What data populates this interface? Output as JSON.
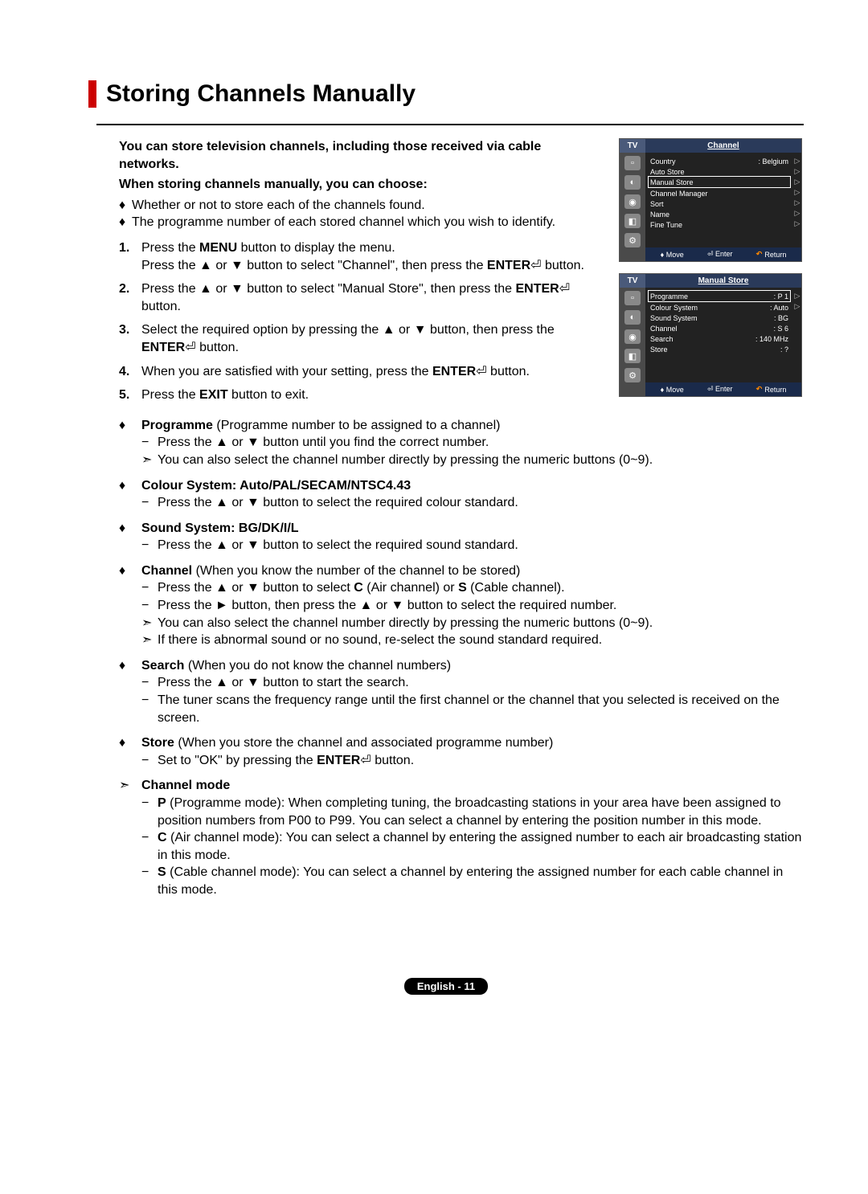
{
  "title": "Storing Channels Manually",
  "intro1": "You can store television channels, including those received via cable networks.",
  "intro2": "When storing channels manually, you can choose:",
  "introBullets": [
    "Whether or not to store each of the channels found.",
    "The programme number of each stored channel which you wish to identify."
  ],
  "steps": [
    {
      "num": "1.",
      "html": "Press the <b>MENU</b> button to display the menu.<br>Press the ▲ or ▼ button to select \"Channel\", then press the <b>ENTER</b>⏎ button."
    },
    {
      "num": "2.",
      "html": "Press the ▲ or ▼ button to select \"Manual Store\", then press the <b>ENTER</b>⏎ button."
    },
    {
      "num": "3.",
      "html": "Select the required option by pressing the ▲ or ▼ button, then press the <b>ENTER</b>⏎ button."
    },
    {
      "num": "4.",
      "html": "When you are satisfied with your setting, press the <b>ENTER</b>⏎ button."
    },
    {
      "num": "5.",
      "html": "Press the <b>EXIT</b> button to exit."
    }
  ],
  "options": [
    {
      "mark": "♦",
      "head": "<b>Programme</b> (Programme number to be assigned to a channel)",
      "lines": [
        {
          "m": "−",
          "t": "Press the ▲ or ▼ button until you find the correct number."
        },
        {
          "m": "➣",
          "t": "You can also select the channel number directly by pressing the numeric buttons (0~9)."
        }
      ]
    },
    {
      "mark": "♦",
      "head": "<b>Colour System: Auto/PAL/SECAM/NTSC4.43</b>",
      "lines": [
        {
          "m": "−",
          "t": "Press the ▲ or ▼ button to select the required colour standard."
        }
      ]
    },
    {
      "mark": "♦",
      "head": "<b>Sound System: BG/DK/I/L</b>",
      "lines": [
        {
          "m": "−",
          "t": "Press the ▲ or ▼ button to select the required sound standard."
        }
      ]
    },
    {
      "mark": "♦",
      "head": "<b>Channel</b> (When you know the number of the channel to be stored)",
      "lines": [
        {
          "m": "−",
          "t": "Press the ▲ or ▼ button to select <b>C</b> (Air channel) or <b>S</b> (Cable channel)."
        },
        {
          "m": "−",
          "t": "Press the ► button, then press the ▲ or ▼ button to select the required number."
        },
        {
          "m": "➣",
          "t": "You can also select the channel number directly by pressing the numeric buttons (0~9)."
        },
        {
          "m": "➣",
          "t": "If there is abnormal sound or no sound, re-select the sound standard required."
        }
      ]
    },
    {
      "mark": "♦",
      "head": "<b>Search</b> (When you do not know the channel numbers)",
      "lines": [
        {
          "m": "−",
          "t": "Press the ▲ or ▼ button to start the search."
        },
        {
          "m": "−",
          "t": "The tuner scans the frequency range until the first channel or the channel that you selected is received on the screen."
        }
      ]
    },
    {
      "mark": "♦",
      "head": "<b>Store</b> (When you store the channel and associated programme number)",
      "lines": [
        {
          "m": "−",
          "t": "Set to \"OK\" by pressing the <b>ENTER</b>⏎ button."
        }
      ]
    },
    {
      "mark": "➣",
      "head": "<b>Channel mode</b>",
      "lines": [
        {
          "m": "−",
          "t": "<b>P</b> (Programme mode): When completing tuning, the broadcasting stations in your area have been assigned to position numbers from P00 to P99. You can select a channel by entering the position number in this mode."
        },
        {
          "m": "−",
          "t": "<b>C</b> (Air channel mode): You can select a channel by entering the assigned number to each air broadcasting station in this mode."
        },
        {
          "m": "−",
          "t": "<b>S</b> (Cable channel mode): You can select a channel by entering the assigned number for each cable channel in this mode."
        }
      ]
    }
  ],
  "osd1": {
    "tv": "TV",
    "title": "Channel",
    "rows": [
      {
        "l": "Country",
        "v": ": Belgium",
        "a": "▷"
      },
      {
        "l": "Auto Store",
        "v": "",
        "a": "▷"
      },
      {
        "l": "Manual Store",
        "v": "",
        "a": "▷",
        "sel": true
      },
      {
        "l": "Channel Manager",
        "v": "",
        "a": "▷"
      },
      {
        "l": "Sort",
        "v": "",
        "a": "▷"
      },
      {
        "l": "Name",
        "v": "",
        "a": "▷"
      },
      {
        "l": "Fine Tune",
        "v": "",
        "a": "▷"
      }
    ],
    "foot": {
      "move": "Move",
      "enter": "Enter",
      "return": "Return"
    }
  },
  "osd2": {
    "tv": "TV",
    "title": "Manual Store",
    "rows": [
      {
        "l": "Programme",
        "v": ": P 1",
        "a": "▷",
        "sel": true
      },
      {
        "l": "Colour System",
        "v": ": Auto",
        "a": "▷"
      },
      {
        "l": "Sound System",
        "v": ": BG",
        "a": ""
      },
      {
        "l": "Channel",
        "v": ": S 6",
        "a": ""
      },
      {
        "l": "Search",
        "v": ": 140 MHz",
        "a": ""
      },
      {
        "l": "Store",
        "v": ": ?",
        "a": ""
      }
    ],
    "foot": {
      "move": "Move",
      "enter": "Enter",
      "return": "Return"
    }
  },
  "pageNum": "English - 11"
}
